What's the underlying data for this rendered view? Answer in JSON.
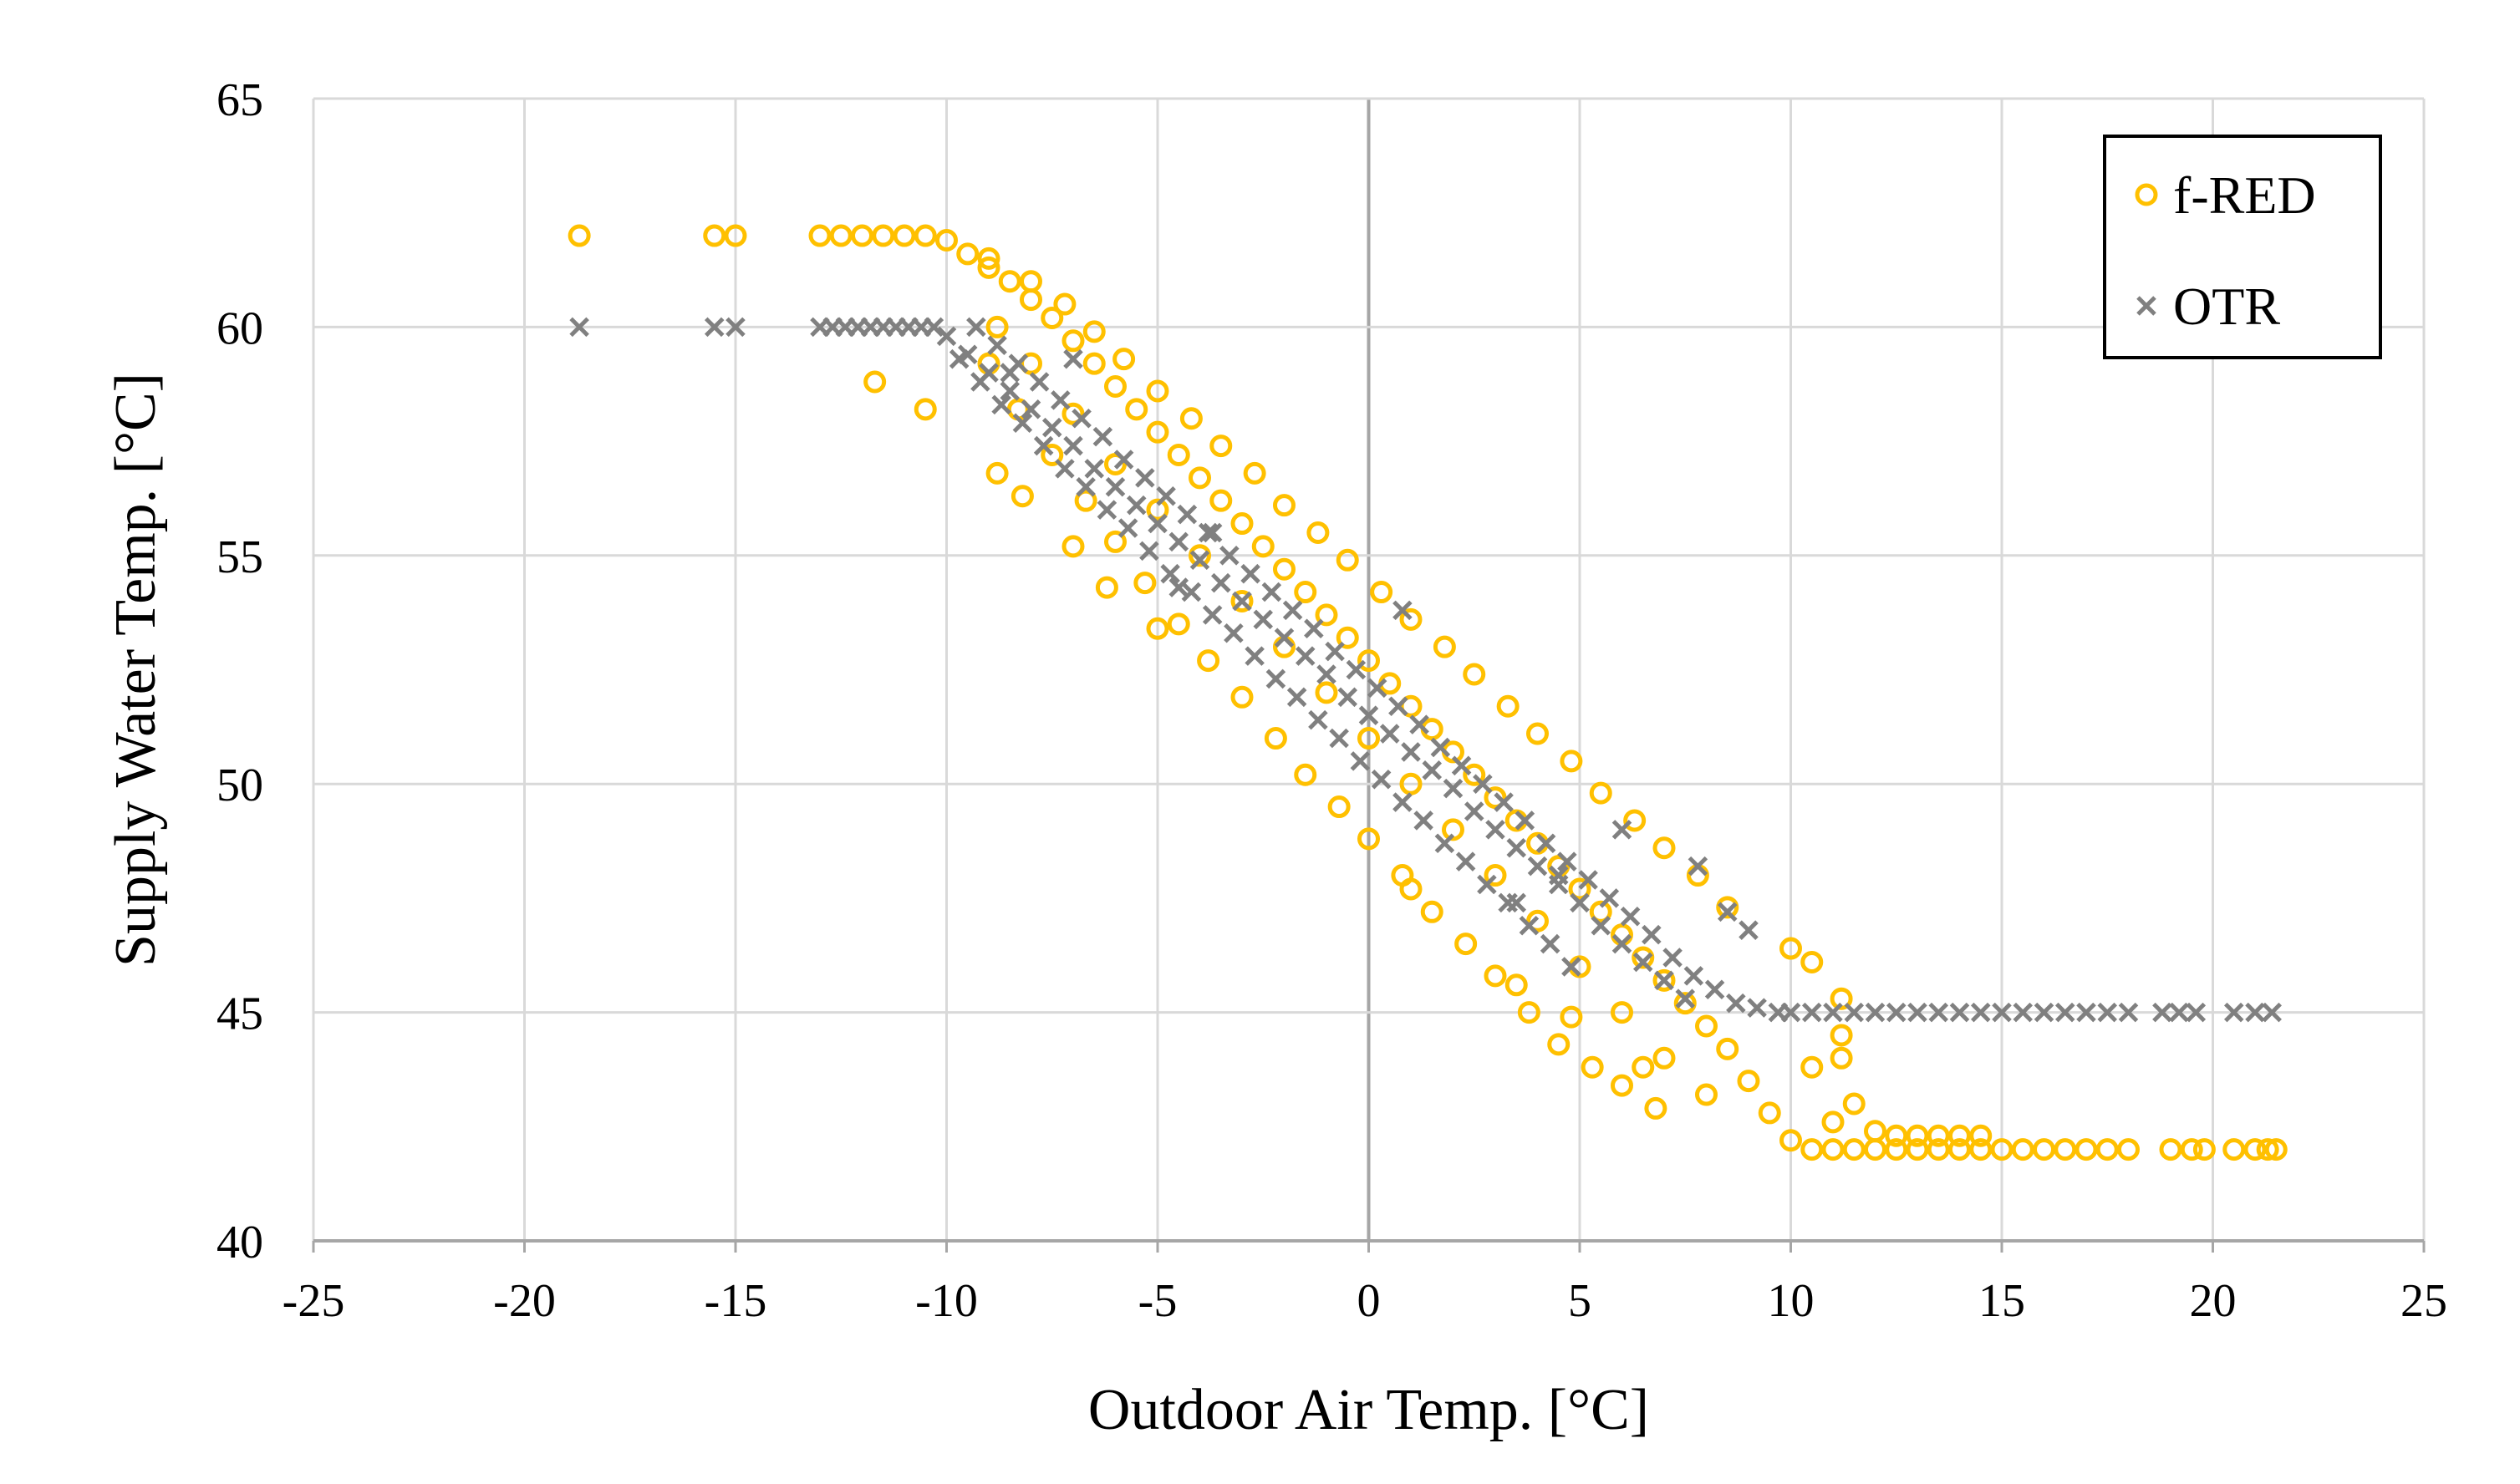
{
  "chart_data": {
    "type": "scatter",
    "title": "",
    "xlabel": "Outdoor Air Temp. [°C]",
    "ylabel": "Supply Water Temp. [°C]",
    "xlim": [
      -25,
      25
    ],
    "ylim": [
      40,
      65
    ],
    "x_ticks": [
      -25,
      -20,
      -15,
      -10,
      -5,
      0,
      5,
      10,
      15,
      20,
      25
    ],
    "y_ticks": [
      40,
      45,
      50,
      55,
      60,
      65
    ],
    "x_tick_labels": [
      "-25",
      "-20",
      "-15",
      "-10",
      "-5",
      "0",
      "5",
      "10",
      "15",
      "20",
      "25"
    ],
    "y_tick_labels": [
      "40",
      "45",
      "50",
      "55",
      "60",
      "65"
    ],
    "grid": true,
    "legend_position": "top-right",
    "series": [
      {
        "name": "f-RED",
        "marker": "circle-open",
        "color": "#FFC000",
        "points": [
          [
            -18.7,
            62.0
          ],
          [
            -15.5,
            62.0
          ],
          [
            -15.0,
            62.0
          ],
          [
            -13.0,
            62.0
          ],
          [
            -12.5,
            62.0
          ],
          [
            -12.0,
            62.0
          ],
          [
            -11.5,
            62.0
          ],
          [
            -11.0,
            62.0
          ],
          [
            -10.5,
            62.0
          ],
          [
            -10.0,
            61.9
          ],
          [
            -9.5,
            61.6
          ],
          [
            -9.0,
            61.3
          ],
          [
            -8.5,
            61.0
          ],
          [
            -8.0,
            60.6
          ],
          [
            -7.5,
            60.2
          ],
          [
            -7.0,
            59.7
          ],
          [
            -6.5,
            59.2
          ],
          [
            -6.0,
            58.7
          ],
          [
            -5.5,
            58.2
          ],
          [
            -5.0,
            57.7
          ],
          [
            -4.5,
            57.2
          ],
          [
            -4.0,
            56.7
          ],
          [
            -3.5,
            56.2
          ],
          [
            -3.0,
            55.7
          ],
          [
            -2.5,
            55.2
          ],
          [
            -2.0,
            54.7
          ],
          [
            -1.5,
            54.2
          ],
          [
            -1.0,
            53.7
          ],
          [
            -0.5,
            53.2
          ],
          [
            0.0,
            52.7
          ],
          [
            0.5,
            52.2
          ],
          [
            1.0,
            51.7
          ],
          [
            1.5,
            51.2
          ],
          [
            2.0,
            50.7
          ],
          [
            2.5,
            50.2
          ],
          [
            3.0,
            49.7
          ],
          [
            3.5,
            49.2
          ],
          [
            4.0,
            48.7
          ],
          [
            4.5,
            48.2
          ],
          [
            5.0,
            47.7
          ],
          [
            5.5,
            47.2
          ],
          [
            6.0,
            46.7
          ],
          [
            6.5,
            46.2
          ],
          [
            7.0,
            45.7
          ],
          [
            7.5,
            45.2
          ],
          [
            8.0,
            44.7
          ],
          [
            8.5,
            44.2
          ],
          [
            9.0,
            43.5
          ],
          [
            9.5,
            42.8
          ],
          [
            10.0,
            42.2
          ],
          [
            -8.8,
            60.0
          ],
          [
            -8.0,
            59.2
          ],
          [
            -7.0,
            58.1
          ],
          [
            -6.0,
            57.0
          ],
          [
            -5.0,
            56.0
          ],
          [
            -4.0,
            55.0
          ],
          [
            -3.0,
            54.0
          ],
          [
            -2.0,
            53.0
          ],
          [
            -1.0,
            52.0
          ],
          [
            0.0,
            51.0
          ],
          [
            1.0,
            50.0
          ],
          [
            2.0,
            49.0
          ],
          [
            3.0,
            48.0
          ],
          [
            4.0,
            47.0
          ],
          [
            5.0,
            46.0
          ],
          [
            6.0,
            45.0
          ],
          [
            7.0,
            44.0
          ],
          [
            8.0,
            43.2
          ],
          [
            -9.0,
            59.2
          ],
          [
            -8.3,
            58.2
          ],
          [
            -7.5,
            57.2
          ],
          [
            -6.7,
            56.2
          ],
          [
            -6.0,
            55.3
          ],
          [
            -5.3,
            54.4
          ],
          [
            -4.5,
            53.5
          ],
          [
            -3.8,
            52.7
          ],
          [
            -3.0,
            51.9
          ],
          [
            -2.2,
            51.0
          ],
          [
            -1.5,
            50.2
          ],
          [
            -0.7,
            49.5
          ],
          [
            0.0,
            48.8
          ],
          [
            0.8,
            48.0
          ],
          [
            1.5,
            47.2
          ],
          [
            2.3,
            46.5
          ],
          [
            3.0,
            45.8
          ],
          [
            3.8,
            45.0
          ],
          [
            4.5,
            44.3
          ],
          [
            5.3,
            43.8
          ],
          [
            6.0,
            43.4
          ],
          [
            6.8,
            42.9
          ],
          [
            -11.7,
            58.8
          ],
          [
            -10.5,
            58.2
          ],
          [
            -8.8,
            56.8
          ],
          [
            -8.2,
            56.3
          ],
          [
            -7.0,
            55.2
          ],
          [
            -6.2,
            54.3
          ],
          [
            -5.0,
            53.4
          ],
          [
            1.0,
            47.7
          ],
          [
            3.5,
            45.6
          ],
          [
            4.8,
            44.9
          ],
          [
            6.5,
            43.8
          ],
          [
            -9.0,
            61.5
          ],
          [
            -8.0,
            61.0
          ],
          [
            -7.2,
            60.5
          ],
          [
            -6.5,
            59.9
          ],
          [
            -5.8,
            59.3
          ],
          [
            -5.0,
            58.6
          ],
          [
            -4.2,
            58.0
          ],
          [
            -3.5,
            57.4
          ],
          [
            -2.7,
            56.8
          ],
          [
            -2.0,
            56.1
          ],
          [
            -1.2,
            55.5
          ],
          [
            -0.5,
            54.9
          ],
          [
            0.3,
            54.2
          ],
          [
            1.0,
            53.6
          ],
          [
            1.8,
            53.0
          ],
          [
            2.5,
            52.4
          ],
          [
            3.3,
            51.7
          ],
          [
            4.0,
            51.1
          ],
          [
            4.8,
            50.5
          ],
          [
            5.5,
            49.8
          ],
          [
            6.3,
            49.2
          ],
          [
            7.0,
            48.6
          ],
          [
            7.8,
            48.0
          ],
          [
            8.5,
            47.3
          ],
          [
            10.0,
            46.4
          ],
          [
            10.5,
            46.1
          ],
          [
            11.2,
            45.3
          ],
          [
            11.2,
            44.5
          ],
          [
            11.2,
            44.0
          ],
          [
            10.5,
            43.8
          ],
          [
            11.5,
            43.0
          ],
          [
            11.0,
            42.6
          ],
          [
            12.0,
            42.4
          ],
          [
            12.5,
            42.3
          ],
          [
            13.0,
            42.3
          ],
          [
            13.5,
            42.3
          ],
          [
            14.0,
            42.3
          ],
          [
            14.5,
            42.3
          ],
          [
            10.5,
            42.0
          ],
          [
            11.0,
            42.0
          ],
          [
            11.5,
            42.0
          ],
          [
            12.0,
            42.0
          ],
          [
            12.5,
            42.0
          ],
          [
            13.0,
            42.0
          ],
          [
            13.5,
            42.0
          ],
          [
            14.0,
            42.0
          ],
          [
            14.5,
            42.0
          ],
          [
            15.0,
            42.0
          ],
          [
            15.5,
            42.0
          ],
          [
            16.0,
            42.0
          ],
          [
            16.5,
            42.0
          ],
          [
            17.0,
            42.0
          ],
          [
            17.5,
            42.0
          ],
          [
            18.0,
            42.0
          ],
          [
            19.0,
            42.0
          ],
          [
            19.5,
            42.0
          ],
          [
            19.8,
            42.0
          ],
          [
            20.5,
            42.0
          ],
          [
            21.0,
            42.0
          ],
          [
            21.3,
            42.0
          ],
          [
            21.5,
            42.0
          ]
        ]
      },
      {
        "name": "OTR",
        "marker": "x",
        "color": "#808080",
        "points": [
          [
            -18.7,
            60.0
          ],
          [
            -15.5,
            60.0
          ],
          [
            -15.0,
            60.0
          ],
          [
            -13.0,
            60.0
          ],
          [
            -12.7,
            60.0
          ],
          [
            -12.4,
            60.0
          ],
          [
            -12.1,
            60.0
          ],
          [
            -11.8,
            60.0
          ],
          [
            -11.5,
            60.0
          ],
          [
            -11.2,
            60.0
          ],
          [
            -10.9,
            60.0
          ],
          [
            -10.6,
            60.0
          ],
          [
            -10.3,
            60.0
          ],
          [
            -10.0,
            59.8
          ],
          [
            -9.5,
            59.4
          ],
          [
            -9.0,
            59.0
          ],
          [
            -8.5,
            58.6
          ],
          [
            -8.0,
            58.2
          ],
          [
            -7.5,
            57.8
          ],
          [
            -7.0,
            57.4
          ],
          [
            -6.5,
            56.9
          ],
          [
            -6.0,
            56.5
          ],
          [
            -5.5,
            56.1
          ],
          [
            -5.0,
            55.7
          ],
          [
            -4.5,
            55.3
          ],
          [
            -4.0,
            54.9
          ],
          [
            -3.5,
            54.4
          ],
          [
            -3.0,
            54.0
          ],
          [
            -2.5,
            53.6
          ],
          [
            -2.0,
            53.2
          ],
          [
            -1.5,
            52.8
          ],
          [
            -1.0,
            52.4
          ],
          [
            -0.5,
            51.9
          ],
          [
            0.0,
            51.5
          ],
          [
            0.5,
            51.1
          ],
          [
            1.0,
            50.7
          ],
          [
            1.5,
            50.3
          ],
          [
            2.0,
            49.9
          ],
          [
            2.5,
            49.4
          ],
          [
            3.0,
            49.0
          ],
          [
            3.5,
            48.6
          ],
          [
            4.0,
            48.2
          ],
          [
            4.5,
            47.8
          ],
          [
            5.0,
            47.4
          ],
          [
            5.5,
            46.9
          ],
          [
            6.0,
            46.5
          ],
          [
            6.5,
            46.1
          ],
          [
            7.0,
            45.7
          ],
          [
            7.5,
            45.3
          ],
          [
            -9.7,
            59.3
          ],
          [
            -9.2,
            58.8
          ],
          [
            -8.7,
            58.3
          ],
          [
            -8.2,
            57.9
          ],
          [
            -7.7,
            57.4
          ],
          [
            -7.2,
            56.9
          ],
          [
            -6.7,
            56.5
          ],
          [
            -6.2,
            56.0
          ],
          [
            -5.7,
            55.6
          ],
          [
            -5.2,
            55.1
          ],
          [
            -4.7,
            54.6
          ],
          [
            -4.2,
            54.2
          ],
          [
            -3.7,
            53.7
          ],
          [
            -3.2,
            53.3
          ],
          [
            -2.7,
            52.8
          ],
          [
            -2.2,
            52.3
          ],
          [
            -1.7,
            51.9
          ],
          [
            -1.2,
            51.4
          ],
          [
            -0.7,
            51.0
          ],
          [
            -0.2,
            50.5
          ],
          [
            0.3,
            50.1
          ],
          [
            0.8,
            49.6
          ],
          [
            1.3,
            49.2
          ],
          [
            1.8,
            48.7
          ],
          [
            2.3,
            48.3
          ],
          [
            2.8,
            47.8
          ],
          [
            3.3,
            47.4
          ],
          [
            3.8,
            46.9
          ],
          [
            4.3,
            46.5
          ],
          [
            4.8,
            46.0
          ],
          [
            -9.3,
            60.0
          ],
          [
            -8.8,
            59.6
          ],
          [
            -8.3,
            59.2
          ],
          [
            -7.8,
            58.8
          ],
          [
            -7.3,
            58.4
          ],
          [
            -6.8,
            58.0
          ],
          [
            -6.3,
            57.6
          ],
          [
            -5.8,
            57.1
          ],
          [
            -5.3,
            56.7
          ],
          [
            -4.8,
            56.3
          ],
          [
            -4.3,
            55.9
          ],
          [
            -3.8,
            55.5
          ],
          [
            -3.3,
            55.0
          ],
          [
            -2.8,
            54.6
          ],
          [
            -2.3,
            54.2
          ],
          [
            -1.8,
            53.8
          ],
          [
            -1.3,
            53.4
          ],
          [
            -0.8,
            52.9
          ],
          [
            -0.3,
            52.5
          ],
          [
            0.2,
            52.1
          ],
          [
            0.7,
            51.7
          ],
          [
            1.2,
            51.3
          ],
          [
            1.7,
            50.8
          ],
          [
            2.2,
            50.4
          ],
          [
            2.7,
            50.0
          ],
          [
            3.2,
            49.6
          ],
          [
            3.7,
            49.2
          ],
          [
            4.2,
            48.7
          ],
          [
            4.7,
            48.3
          ],
          [
            5.2,
            47.9
          ],
          [
            5.7,
            47.5
          ],
          [
            6.2,
            47.1
          ],
          [
            6.7,
            46.7
          ],
          [
            7.2,
            46.2
          ],
          [
            7.7,
            45.8
          ],
          [
            8.2,
            45.5
          ],
          [
            8.7,
            45.2
          ],
          [
            9.2,
            45.1
          ],
          [
            9.7,
            45.0
          ],
          [
            -8.5,
            59.0
          ],
          [
            -7.0,
            59.3
          ],
          [
            -4.5,
            54.3
          ],
          [
            -3.7,
            55.5
          ],
          [
            0.8,
            53.8
          ],
          [
            3.5,
            47.4
          ],
          [
            4.5,
            48.0
          ],
          [
            6.0,
            49.0
          ],
          [
            7.8,
            48.2
          ],
          [
            8.5,
            47.2
          ],
          [
            9.0,
            46.8
          ],
          [
            10.0,
            45.0
          ],
          [
            10.5,
            45.0
          ],
          [
            11.0,
            45.0
          ],
          [
            11.5,
            45.0
          ],
          [
            12.0,
            45.0
          ],
          [
            12.5,
            45.0
          ],
          [
            13.0,
            45.0
          ],
          [
            13.5,
            45.0
          ],
          [
            14.0,
            45.0
          ],
          [
            14.5,
            45.0
          ],
          [
            15.0,
            45.0
          ],
          [
            15.5,
            45.0
          ],
          [
            16.0,
            45.0
          ],
          [
            16.5,
            45.0
          ],
          [
            17.0,
            45.0
          ],
          [
            17.5,
            45.0
          ],
          [
            18.0,
            45.0
          ],
          [
            18.8,
            45.0
          ],
          [
            19.2,
            45.0
          ],
          [
            19.6,
            45.0
          ],
          [
            20.5,
            45.0
          ],
          [
            21.0,
            45.0
          ],
          [
            21.4,
            45.0
          ]
        ]
      }
    ]
  }
}
